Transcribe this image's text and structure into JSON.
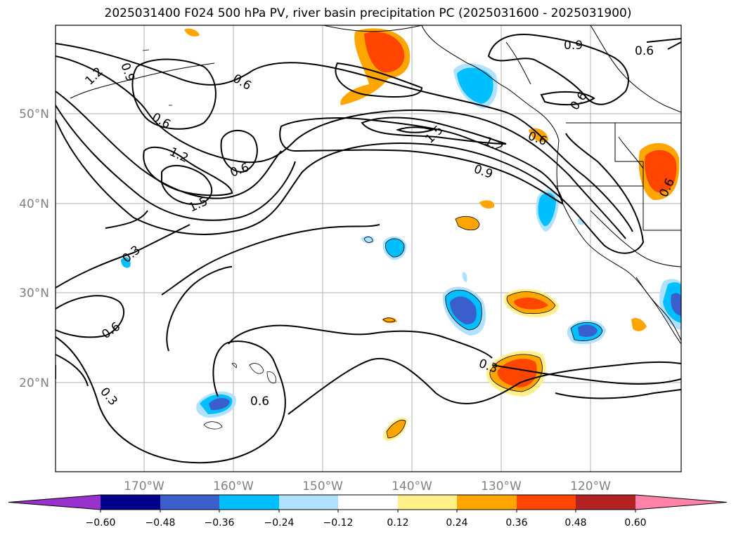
{
  "title": "2025031400 F024 500 hPa PV, river basin precipitation PC (2025031600 - 2025031900)",
  "axes": {
    "lon_labels": [
      "170°W",
      "160°W",
      "150°W",
      "140°W",
      "130°W",
      "120°W"
    ],
    "lat_labels": [
      "50°N",
      "40°N",
      "30°N",
      "20°N"
    ]
  },
  "contour_labels": [
    "1.2",
    "0.9",
    "0.6",
    "0.6",
    "1.2",
    "1.5",
    "0.6",
    "0.3",
    "0.6",
    "0.3",
    "0.6",
    "0.9",
    "0.6",
    "0.6",
    "0.6",
    "1.5",
    "1.2",
    "0.9",
    "0.6",
    "0.3"
  ],
  "colorbar": {
    "ticks": [
      "−0.60",
      "−0.48",
      "−0.36",
      "−0.24",
      "−0.12",
      "0.12",
      "0.24",
      "0.36",
      "0.48",
      "0.60"
    ],
    "colors": {
      "under": "#9932cc",
      "c1": "#00008b",
      "c2": "#3a5fcd",
      "c3": "#00bfff",
      "c4": "#b0e2ff",
      "c5": "#ffffff",
      "c6": "#fff08a",
      "c7": "#ffa500",
      "c8": "#ff4500",
      "c9": "#b22222",
      "over": "#ff83a8"
    }
  }
}
